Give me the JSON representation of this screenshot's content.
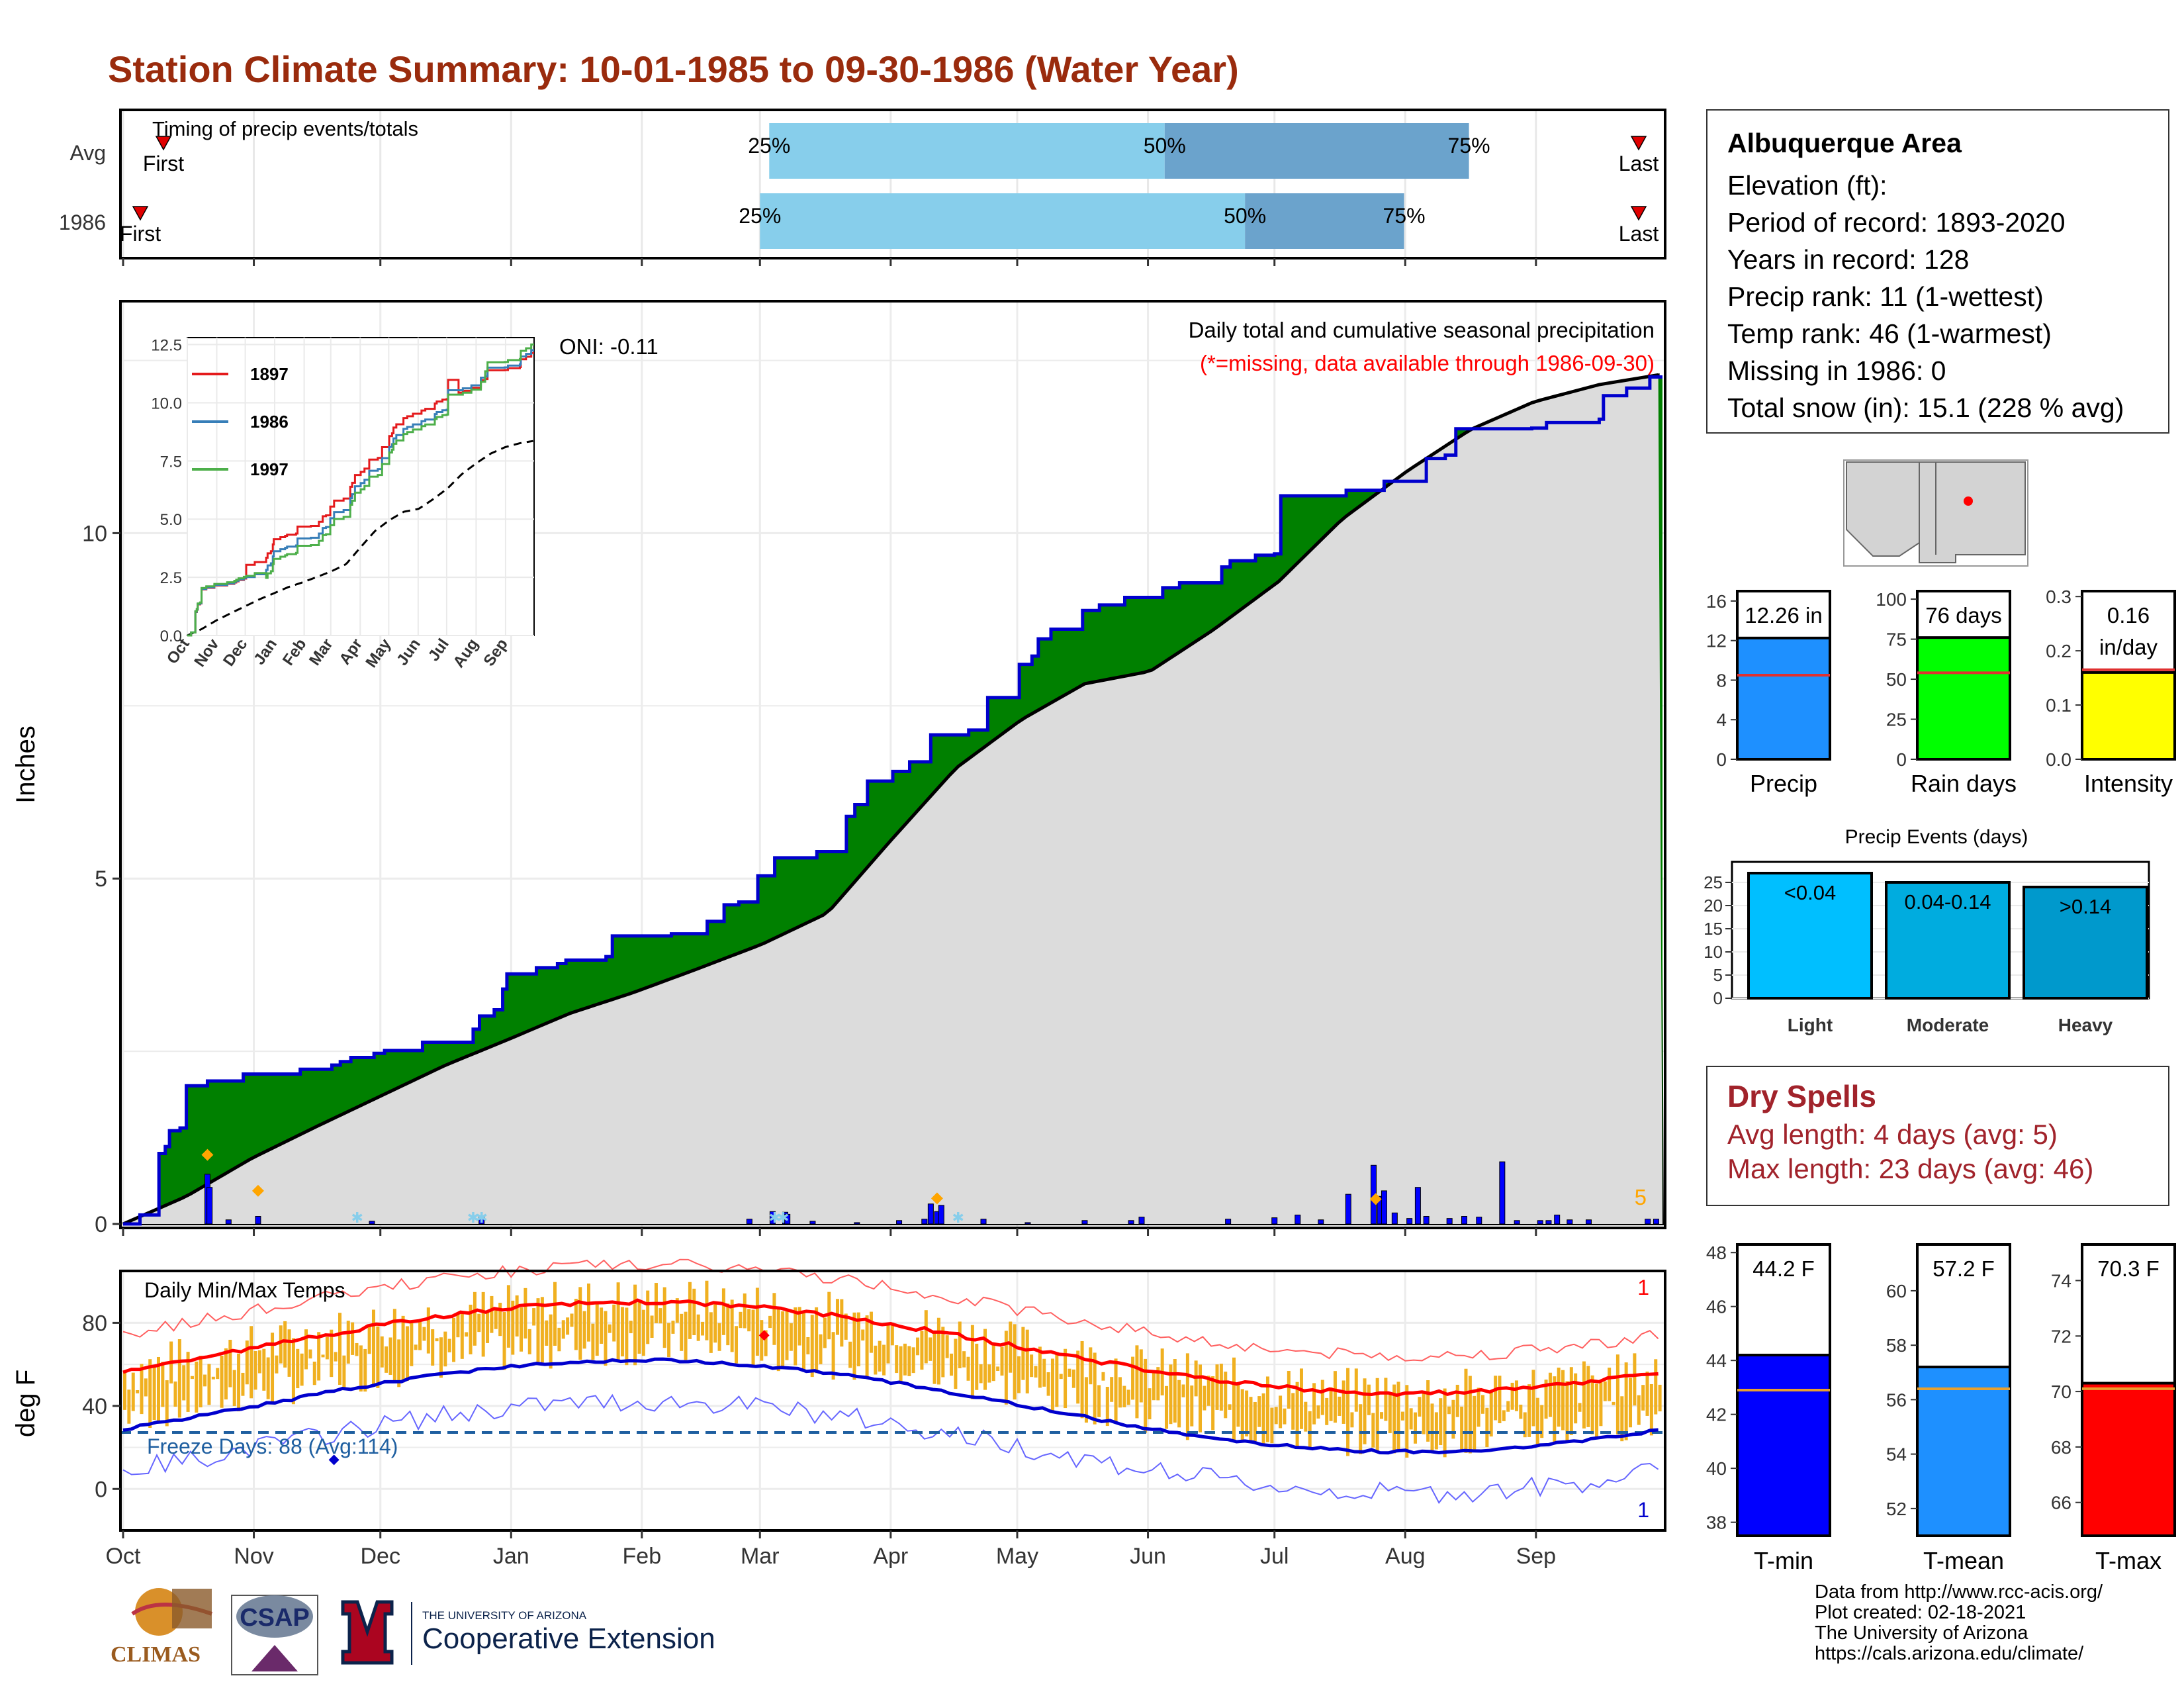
{
  "title": "Station Climate Summary: 10-01-1985 to 09-30-1986 (Water Year)",
  "timing_panel": {
    "title": "Timing of precip events/totals",
    "rows": [
      {
        "label": "Avg",
        "first_label": "First",
        "last_label": "Last",
        "first_pct": 0.0,
        "last_pct": 0.997,
        "p25": 0.42,
        "p50": 0.676,
        "p75": 0.873,
        "p25_label": "25%",
        "p50_label": "50%",
        "p75_label": "75%"
      },
      {
        "label": "1986",
        "first_label": "First",
        "last_label": "Last",
        "first_pct": -0.015,
        "last_pct": 0.997,
        "p25": 0.414,
        "p50": 0.728,
        "p75": 0.831,
        "p25_label": "25%",
        "p50_label": "50%",
        "p75_label": "75%"
      }
    ],
    "colors": {
      "light": "#87ceeb",
      "dark": "#6ba3cc",
      "marker": "#e00000"
    }
  },
  "main_panel": {
    "ylabel": "Inches",
    "annotation_title": "Daily total and cumulative seasonal precipitation",
    "annotation_note": "(*=missing, data available through 1986-09-30)",
    "oni_label": "ONI: -0.11",
    "count_label": "5",
    "colors": {
      "green": "#008000",
      "gray": "#dcdcdc",
      "blue_line": "#0000cd",
      "bar": "#0000ff",
      "diamond": "#ffa500",
      "note": "#ff0000"
    }
  },
  "inset": {
    "legend": [
      {
        "name": "1897",
        "color": "#e41a1c"
      },
      {
        "name": "1986",
        "color": "#377eb8"
      },
      {
        "name": "1997",
        "color": "#4daf4a"
      }
    ],
    "yticks": [
      "0.0",
      "2.5",
      "5.0",
      "7.5",
      "10.0",
      "12.5"
    ],
    "xticks": [
      "Oct",
      "Nov",
      "Dec",
      "Jan",
      "Feb",
      "Mar",
      "Apr",
      "May",
      "Jun",
      "Jul",
      "Aug",
      "Sep"
    ]
  },
  "temp_panel": {
    "ylabel": "deg F",
    "title": "Daily Min/Max Temps",
    "freeze_label": "Freeze Days: 88 (Avg:114)",
    "top_count": "1",
    "bottom_count": "1",
    "yticks": [
      "0",
      "40",
      "80"
    ],
    "colors": {
      "bar": "#f0b020",
      "max": "#ff0000",
      "min": "#0000cd",
      "freeze": "#1f5fa0"
    }
  },
  "x_axis_months": [
    "Oct",
    "Nov",
    "Dec",
    "Jan",
    "Feb",
    "Mar",
    "Apr",
    "May",
    "Jun",
    "Jul",
    "Aug",
    "Sep"
  ],
  "station": {
    "name": "Albuquerque Area",
    "lines": [
      "Elevation (ft):",
      "Period of record: 1893-2020",
      "Years in record: 128",
      "Precip rank: 11 (1-wettest)",
      "Temp rank: 46 (1-warmest)",
      "Missing in 1986: 0",
      "Total snow (in): 15.1 (228 % avg)"
    ]
  },
  "dry_spells": {
    "title": "Dry Spells",
    "avg_line": "Avg length: 4 days (avg: 5)",
    "max_line": "Max length: 23 days (avg: 46)"
  },
  "stat_bars_top": [
    {
      "label": "Precip",
      "value_label": "12.26 in",
      "yticks": [
        "0",
        "4",
        "8",
        "12",
        "16"
      ],
      "color": "#1e90ff",
      "value": 12.26,
      "avg": 8.5,
      "ymax": 17
    },
    {
      "label": "Rain days",
      "value_label": "76 days",
      "yticks": [
        "0",
        "25",
        "50",
        "75",
        "100"
      ],
      "color": "#00ff00",
      "value": 76,
      "avg": 54,
      "ymax": 105
    },
    {
      "label": "Intensity",
      "value_label": "0.16 in/day",
      "yticks": [
        "0.0",
        "0.1",
        "0.2",
        "0.3"
      ],
      "color": "#ffff00",
      "value": 0.16,
      "avg": 0.165,
      "ymax": 0.31
    }
  ],
  "precip_events": {
    "title": "Precip Events (days)",
    "yticks": [
      "0",
      "5",
      "10",
      "15",
      "20",
      "25"
    ],
    "bars": [
      {
        "category": "Light",
        "label": "<0.04",
        "value": 27,
        "color": "#00bfff"
      },
      {
        "category": "Moderate",
        "label": "0.04-0.14",
        "value": 25,
        "color": "#00acdf"
      },
      {
        "category": "Heavy",
        "label": ">0.14",
        "value": 24,
        "color": "#0099cc"
      }
    ]
  },
  "stat_bars_temp": [
    {
      "label": "T-min",
      "value_label": "44.2 F",
      "yticks": [
        "38",
        "40",
        "42",
        "44",
        "46",
        "48"
      ],
      "color": "#0000ff",
      "value": 44.2,
      "avg": 42.9,
      "ymin": 37.5,
      "ymax": 48.3
    },
    {
      "label": "T-mean",
      "value_label": "57.2 F",
      "yticks": [
        "52",
        "54",
        "56",
        "58",
        "60"
      ],
      "color": "#1e90ff",
      "value": 57.2,
      "avg": 56.4,
      "ymin": 51,
      "ymax": 61.7
    },
    {
      "label": "T-max",
      "value_label": "70.3 F",
      "yticks": [
        "66",
        "68",
        "70",
        "72",
        "74"
      ],
      "color": "#ff0000",
      "value": 70.3,
      "avg": 70.1,
      "ymin": 64.8,
      "ymax": 75.3
    }
  ],
  "chart_data": {
    "type": "area",
    "title": "Daily total and cumulative seasonal precipitation",
    "ylabel": "Inches",
    "ylim": [
      0,
      13.3
    ],
    "xlim_months": [
      "Oct",
      "Sep"
    ],
    "series": [
      {
        "name": "1986",
        "points": [
          [
            0,
            0
          ],
          [
            8,
            0.13
          ],
          [
            16,
            0.13
          ],
          [
            17,
            1.02
          ],
          [
            20,
            1.12
          ],
          [
            22,
            1.35
          ],
          [
            27,
            1.39
          ],
          [
            30,
            2.0
          ],
          [
            40,
            2.07
          ],
          [
            57,
            2.17
          ],
          [
            84,
            2.24
          ],
          [
            99,
            2.3
          ],
          [
            103,
            2.35
          ],
          [
            108,
            2.41
          ],
          [
            119,
            2.47
          ],
          [
            124,
            2.51
          ],
          [
            142,
            2.63
          ],
          [
            166,
            2.82
          ],
          [
            169,
            3.01
          ],
          [
            176,
            3.1
          ],
          [
            180,
            3.4
          ],
          [
            182,
            3.62
          ],
          [
            196,
            3.71
          ],
          [
            206,
            3.77
          ],
          [
            210,
            3.82
          ],
          [
            229,
            3.87
          ],
          [
            232,
            4.17
          ],
          [
            260,
            4.2
          ],
          [
            277,
            4.38
          ],
          [
            285,
            4.62
          ],
          [
            292,
            4.66
          ],
          [
            301,
            5.04
          ],
          [
            309,
            5.3
          ],
          [
            329,
            5.39
          ],
          [
            343,
            5.9
          ],
          [
            347,
            6.07
          ],
          [
            353,
            6.41
          ],
          [
            365,
            6.55
          ],
          [
            373,
            6.69
          ],
          [
            383,
            7.08
          ],
          [
            401,
            7.15
          ],
          [
            410,
            7.62
          ],
          [
            425,
            8.1
          ],
          [
            431,
            8.22
          ],
          [
            434,
            8.47
          ],
          [
            440,
            8.61
          ],
          [
            455,
            8.88
          ],
          [
            463,
            8.96
          ],
          [
            475,
            9.07
          ],
          [
            493,
            9.21
          ],
          [
            501,
            9.28
          ],
          [
            521,
            9.51
          ],
          [
            525,
            9.6
          ],
          [
            537,
            9.68
          ],
          [
            546,
            9.7
          ],
          [
            549,
            10.54
          ],
          [
            571,
            10.54
          ],
          [
            580,
            10.62
          ],
          [
            598,
            10.75
          ],
          [
            618,
            11.08
          ],
          [
            627,
            11.13
          ],
          [
            632,
            11.51
          ],
          [
            668,
            11.52
          ],
          [
            675,
            11.6
          ],
          [
            694,
            11.6
          ],
          [
            700,
            11.65
          ],
          [
            702,
            11.99
          ],
          [
            710,
            11.99
          ],
          [
            713,
            12.1
          ],
          [
            724,
            12.1
          ],
          [
            724,
            12.26
          ],
          [
            730,
            12.26
          ]
        ]
      },
      {
        "name": "Average (cumulative)",
        "points": [
          [
            0,
            0
          ],
          [
            30,
            0.4
          ],
          [
            61,
            0.95
          ],
          [
            91,
            1.4
          ],
          [
            122,
            1.85
          ],
          [
            153,
            2.3
          ],
          [
            181,
            2.65
          ],
          [
            212,
            3.05
          ],
          [
            242,
            3.35
          ],
          [
            273,
            3.7
          ],
          [
            303,
            4.05
          ],
          [
            334,
            4.5
          ],
          [
            364,
            5.55
          ],
          [
            395,
            6.6
          ],
          [
            426,
            7.3
          ],
          [
            456,
            7.82
          ],
          [
            487,
            8.0
          ],
          [
            517,
            8.6
          ],
          [
            548,
            9.3
          ],
          [
            578,
            10.2
          ],
          [
            609,
            10.9
          ],
          [
            639,
            11.5
          ],
          [
            669,
            11.9
          ],
          [
            700,
            12.15
          ],
          [
            730,
            12.3
          ]
        ]
      }
    ],
    "x_scale_note": "x in half-days from Oct 1",
    "daily_bars": [
      [
        40,
        0.72
      ],
      [
        41,
        0.53
      ],
      [
        50,
        0.06
      ],
      [
        64,
        0.11
      ],
      [
        118,
        0.04
      ],
      [
        170,
        0.1
      ],
      [
        297,
        0.07
      ],
      [
        308,
        0.18
      ],
      [
        314,
        0.17
      ],
      [
        315,
        0.14
      ],
      [
        327,
        0.04
      ],
      [
        348,
        0.02
      ],
      [
        368,
        0.05
      ],
      [
        380,
        0.07
      ],
      [
        383,
        0.29
      ],
      [
        386,
        0.18
      ],
      [
        388,
        0.27
      ],
      [
        408,
        0.07
      ],
      [
        429,
        0.02
      ],
      [
        456,
        0.05
      ],
      [
        478,
        0.05
      ],
      [
        483,
        0.1
      ],
      [
        524,
        0.07
      ],
      [
        546,
        0.09
      ],
      [
        557,
        0.13
      ],
      [
        568,
        0.06
      ],
      [
        581,
        0.43
      ],
      [
        593,
        0.85
      ],
      [
        596,
        0.4
      ],
      [
        598,
        0.48
      ],
      [
        603,
        0.16
      ],
      [
        610,
        0.08
      ],
      [
        614,
        0.53
      ],
      [
        618,
        0.11
      ],
      [
        629,
        0.08
      ],
      [
        636,
        0.11
      ],
      [
        643,
        0.1
      ],
      [
        654,
        0.9
      ],
      [
        661,
        0.05
      ],
      [
        672,
        0.05
      ],
      [
        676,
        0.05
      ],
      [
        680,
        0.13
      ],
      [
        686,
        0.06
      ],
      [
        695,
        0.06
      ],
      [
        723,
        0.07
      ],
      [
        727,
        0.07
      ]
    ],
    "freeze_days": 88,
    "freeze_days_avg": 114
  }
}
